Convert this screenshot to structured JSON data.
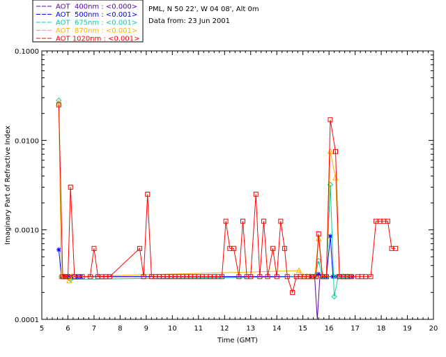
{
  "chart_data": {
    "type": "line",
    "title": "",
    "xlabel": "Time (GMT)",
    "ylabel": "Imaginary Part of Refractive Index",
    "x_scale": "linear",
    "y_scale": "log",
    "xlim": [
      5,
      20
    ],
    "ylim": [
      0.0001,
      0.1
    ],
    "x_ticks": [
      "5",
      "6",
      "7",
      "8",
      "9",
      "10",
      "11",
      "12",
      "13",
      "14",
      "15",
      "16",
      "17",
      "18",
      "19",
      "20"
    ],
    "y_ticks": [
      "0.0001",
      "0.0010",
      "0.0100",
      "0.1000"
    ],
    "info": [
      "PML, N 50 22', W 04 08', Alt 0m",
      "Data from: 23 Jun 2001"
    ],
    "grid": false,
    "legend_position": "top-left-outside",
    "series": [
      {
        "name": "AOT  400nm : <0.000>",
        "color": "#5b00a8",
        "marker": "none",
        "points": [
          [
            5.65,
            0.0003
          ],
          [
            5.75,
            0.0003
          ],
          [
            5.85,
            0.0003
          ],
          [
            5.95,
            0.0003
          ],
          [
            6.05,
            0.0003
          ],
          [
            6.15,
            0.0003
          ],
          [
            6.35,
            0.0003
          ],
          [
            6.5,
            0.0003
          ],
          [
            6.9,
            0.0003
          ],
          [
            7.15,
            0.0003
          ],
          [
            7.3,
            0.0003
          ],
          [
            7.5,
            0.0003
          ],
          [
            7.65,
            0.0003
          ],
          [
            8.7,
            0.0003
          ],
          [
            8.9,
            0.0003
          ],
          [
            9.1,
            0.0003
          ],
          [
            15.3,
            0.0003
          ],
          [
            15.45,
            0.0003
          ],
          [
            15.55,
            8e-05
          ],
          [
            15.65,
            0.0003
          ],
          [
            15.85,
            0.0003
          ],
          [
            16.05,
            0.0003
          ],
          [
            16.15,
            0.0003
          ],
          [
            16.25,
            0.0003
          ],
          [
            16.4,
            0.0003
          ],
          [
            16.6,
            0.0003
          ],
          [
            16.75,
            0.0003
          ],
          [
            16.9,
            0.0003
          ]
        ]
      },
      {
        "name": "AOT  500nm : <0.001>",
        "color": "#0000ff",
        "marker": "star",
        "points": [
          [
            5.65,
            0.0006
          ],
          [
            5.75,
            0.0003
          ],
          [
            5.85,
            0.0003
          ],
          [
            5.95,
            0.0003
          ],
          [
            6.05,
            0.0003
          ],
          [
            6.15,
            0.0003
          ],
          [
            6.35,
            0.0003
          ],
          [
            6.5,
            0.0003
          ],
          [
            15.3,
            0.0003
          ],
          [
            15.45,
            0.0003
          ],
          [
            15.6,
            0.00032
          ],
          [
            15.75,
            0.0003
          ],
          [
            15.9,
            0.0003
          ],
          [
            16.05,
            0.00085
          ],
          [
            16.15,
            0.0003
          ],
          [
            16.3,
            0.0003
          ],
          [
            16.45,
            0.0003
          ],
          [
            16.6,
            0.0003
          ],
          [
            16.75,
            0.0003
          ],
          [
            16.9,
            0.0003
          ]
        ]
      },
      {
        "name": "AOT  675nm : <0.001>",
        "color": "#00d0a0",
        "marker": "diamond",
        "points": [
          [
            5.65,
            0.028
          ],
          [
            5.75,
            0.0003
          ],
          [
            5.85,
            0.0003
          ],
          [
            6.0,
            0.0003
          ],
          [
            6.1,
            0.00028
          ],
          [
            15.45,
            0.0003
          ],
          [
            15.6,
            0.00045
          ],
          [
            15.75,
            0.0003
          ],
          [
            15.9,
            0.0003
          ],
          [
            16.05,
            0.0032
          ],
          [
            16.2,
            0.00018
          ],
          [
            16.35,
            0.0003
          ],
          [
            16.5,
            0.0003
          ],
          [
            16.65,
            0.0003
          ]
        ]
      },
      {
        "name": "AOT  870nm : <0.001>",
        "color": "#ffb000",
        "marker": "triangle",
        "points": [
          [
            5.65,
            0.026
          ],
          [
            5.75,
            0.0003
          ],
          [
            5.85,
            0.0003
          ],
          [
            6.05,
            0.00027
          ],
          [
            6.15,
            0.0003
          ],
          [
            14.85,
            0.00035
          ],
          [
            15.0,
            0.0003
          ],
          [
            15.15,
            0.0003
          ],
          [
            15.3,
            0.0003
          ],
          [
            15.45,
            0.0003
          ],
          [
            15.6,
            0.0008
          ],
          [
            15.75,
            0.0003
          ],
          [
            15.9,
            0.0003
          ],
          [
            16.05,
            0.0075
          ],
          [
            16.25,
            0.0038
          ],
          [
            16.4,
            0.0003
          ],
          [
            16.55,
            0.0003
          ],
          [
            16.7,
            0.0003
          ],
          [
            16.85,
            0.0003
          ]
        ]
      },
      {
        "name": "AOT 1020nm : <0.001>",
        "color": "#ff0000",
        "marker": "square",
        "points": [
          [
            5.65,
            0.025
          ],
          [
            5.8,
            0.0003
          ],
          [
            5.9,
            0.0003
          ],
          [
            6.0,
            0.0003
          ],
          [
            6.1,
            0.003
          ],
          [
            6.25,
            0.0003
          ],
          [
            6.4,
            0.0003
          ],
          [
            6.55,
            0.0003
          ],
          [
            6.85,
            0.0003
          ],
          [
            7.0,
            0.00062
          ],
          [
            7.15,
            0.0003
          ],
          [
            7.3,
            0.0003
          ],
          [
            7.45,
            0.0003
          ],
          [
            7.6,
            0.0003
          ],
          [
            8.75,
            0.00062
          ],
          [
            8.9,
            0.0003
          ],
          [
            9.05,
            0.0025
          ],
          [
            9.2,
            0.0003
          ],
          [
            9.35,
            0.0003
          ],
          [
            9.5,
            0.0003
          ],
          [
            9.65,
            0.0003
          ],
          [
            9.8,
            0.0003
          ],
          [
            9.95,
            0.0003
          ],
          [
            10.1,
            0.0003
          ],
          [
            10.25,
            0.0003
          ],
          [
            10.4,
            0.0003
          ],
          [
            10.55,
            0.0003
          ],
          [
            10.7,
            0.0003
          ],
          [
            10.85,
            0.0003
          ],
          [
            11.0,
            0.0003
          ],
          [
            11.15,
            0.0003
          ],
          [
            11.3,
            0.0003
          ],
          [
            11.45,
            0.0003
          ],
          [
            11.6,
            0.0003
          ],
          [
            11.75,
            0.0003
          ],
          [
            11.9,
            0.0003
          ],
          [
            12.05,
            0.00125
          ],
          [
            12.2,
            0.00062
          ],
          [
            12.35,
            0.00062
          ],
          [
            12.55,
            0.0003
          ],
          [
            12.7,
            0.00125
          ],
          [
            12.85,
            0.0003
          ],
          [
            13.0,
            0.0003
          ],
          [
            13.2,
            0.0025
          ],
          [
            13.35,
            0.0003
          ],
          [
            13.5,
            0.00125
          ],
          [
            13.65,
            0.0003
          ],
          [
            13.85,
            0.00062
          ],
          [
            14.0,
            0.0003
          ],
          [
            14.15,
            0.00125
          ],
          [
            14.3,
            0.00062
          ],
          [
            14.4,
            0.0003
          ],
          [
            14.6,
            0.0002
          ],
          [
            14.75,
            0.0003
          ],
          [
            14.9,
            0.0003
          ],
          [
            15.05,
            0.0003
          ],
          [
            15.2,
            0.0003
          ],
          [
            15.35,
            0.0003
          ],
          [
            15.5,
            0.0003
          ],
          [
            15.6,
            0.0009
          ],
          [
            15.75,
            0.0003
          ],
          [
            15.9,
            0.0003
          ],
          [
            16.05,
            0.017
          ],
          [
            16.25,
            0.0075
          ],
          [
            16.4,
            0.0003
          ],
          [
            16.55,
            0.0003
          ],
          [
            16.7,
            0.0003
          ],
          [
            16.85,
            0.0003
          ],
          [
            17.1,
            0.0003
          ],
          [
            17.25,
            0.0003
          ],
          [
            17.4,
            0.0003
          ],
          [
            17.6,
            0.0003
          ],
          [
            17.8,
            0.00125
          ],
          [
            17.95,
            0.00125
          ],
          [
            18.1,
            0.00125
          ],
          [
            18.25,
            0.00125
          ],
          [
            18.4,
            0.00062
          ],
          [
            18.55,
            0.00062
          ]
        ]
      }
    ]
  }
}
